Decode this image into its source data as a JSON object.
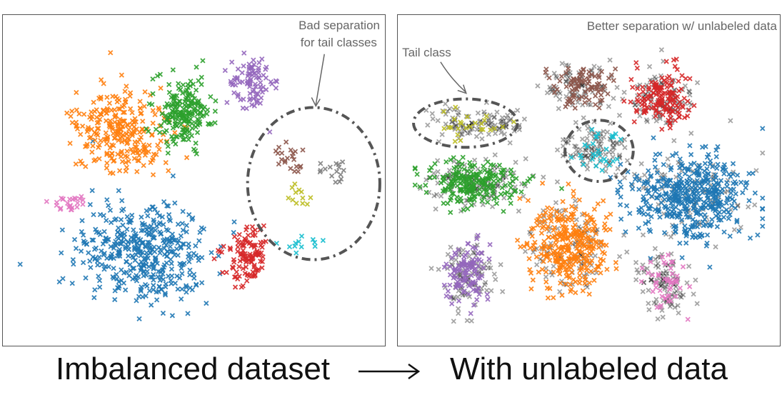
{
  "chart_data": [
    {
      "type": "scatter",
      "marker": "x",
      "caption": "Imbalanced dataset",
      "annotations": [
        "Bad separation",
        "for tail classes"
      ],
      "series": [
        {
          "color": "#1f77b4",
          "center": [
            0.36,
            0.73
          ],
          "spread": [
            0.18,
            0.17
          ],
          "n": 420
        },
        {
          "color": "#ff7f0e",
          "center": [
            0.3,
            0.34
          ],
          "spread": [
            0.12,
            0.13
          ],
          "n": 260
        },
        {
          "color": "#2ca02c",
          "center": [
            0.47,
            0.28
          ],
          "spread": [
            0.08,
            0.11
          ],
          "n": 200
        },
        {
          "color": "#9467bd",
          "center": [
            0.66,
            0.19
          ],
          "spread": [
            0.06,
            0.09
          ],
          "n": 90
        },
        {
          "color": "#d62728",
          "center": [
            0.65,
            0.74
          ],
          "spread": [
            0.06,
            0.1
          ],
          "n": 110
        },
        {
          "color": "#e377c2",
          "center": [
            0.16,
            0.57
          ],
          "spread": [
            0.05,
            0.03
          ],
          "n": 25
        },
        {
          "color": "#8c564b",
          "center": [
            0.77,
            0.43
          ],
          "spread": [
            0.05,
            0.05
          ],
          "n": 22
        },
        {
          "color": "#bcbd22",
          "center": [
            0.79,
            0.55
          ],
          "spread": [
            0.04,
            0.04
          ],
          "n": 12
        },
        {
          "color": "#7f7f7f",
          "center": [
            0.89,
            0.48
          ],
          "spread": [
            0.05,
            0.05
          ],
          "n": 16
        },
        {
          "color": "#17becf",
          "center": [
            0.8,
            0.71
          ],
          "spread": [
            0.07,
            0.03
          ],
          "n": 12
        }
      ]
    },
    {
      "type": "scatter",
      "marker": "x",
      "caption": "With unlabeled data",
      "annotations": [
        "Better separation w/ unlabeled data",
        "Tail class"
      ],
      "series": [
        {
          "color": "#1f77b4",
          "center": [
            0.78,
            0.55
          ],
          "spread": [
            0.17,
            0.13
          ],
          "n": 460
        },
        {
          "color": "#ff7f0e",
          "center": [
            0.45,
            0.71
          ],
          "spread": [
            0.11,
            0.14
          ],
          "n": 320
        },
        {
          "color": "#2ca02c",
          "center": [
            0.18,
            0.51
          ],
          "spread": [
            0.13,
            0.07
          ],
          "n": 220
        },
        {
          "color": "#9467bd",
          "center": [
            0.16,
            0.8
          ],
          "spread": [
            0.06,
            0.1
          ],
          "n": 110
        },
        {
          "color": "#d62728",
          "center": [
            0.7,
            0.24
          ],
          "spread": [
            0.07,
            0.08
          ],
          "n": 150
        },
        {
          "color": "#8c564b",
          "center": [
            0.47,
            0.2
          ],
          "spread": [
            0.09,
            0.08
          ],
          "n": 90
        },
        {
          "color": "#e377c2",
          "center": [
            0.71,
            0.83
          ],
          "spread": [
            0.06,
            0.09
          ],
          "n": 50
        },
        {
          "color": "#bcbd22",
          "center": [
            0.18,
            0.32
          ],
          "spread": [
            0.12,
            0.05
          ],
          "n": 25
        },
        {
          "color": "#17becf",
          "center": [
            0.52,
            0.4
          ],
          "spread": [
            0.07,
            0.07
          ],
          "n": 30
        },
        {
          "color": "#000000",
          "center": [
            0.5,
            0.5
          ],
          "spread": [
            0.35,
            0.3
          ],
          "n": 900,
          "label": "unlabeled"
        }
      ]
    }
  ]
}
